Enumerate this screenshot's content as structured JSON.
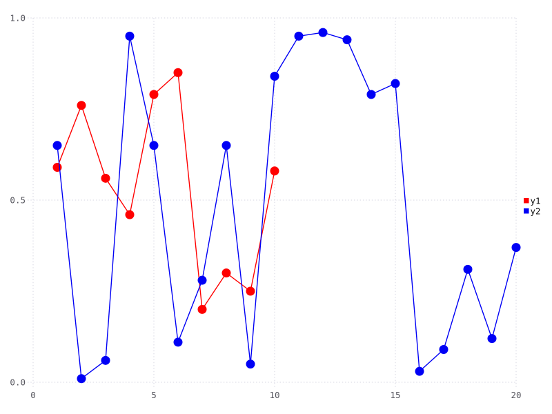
{
  "chart_data": {
    "type": "line",
    "title": "",
    "xlabel": "",
    "ylabel": "",
    "xlim": [
      0,
      20
    ],
    "ylim": [
      0,
      1
    ],
    "grid": true,
    "legend_position": "right-middle",
    "marker": "circle",
    "xticks": {
      "values": [
        0,
        5,
        10,
        15,
        20
      ],
      "labels": [
        "0",
        "5",
        "10",
        "15",
        "20"
      ]
    },
    "yticks": {
      "values": [
        0,
        0.5,
        1
      ],
      "labels": [
        "0.0",
        "0.5",
        "1.0"
      ]
    },
    "series": [
      {
        "name": "y1",
        "color": "#ff0000",
        "x": [
          1,
          2,
          3,
          4,
          5,
          6,
          7,
          8,
          9,
          10
        ],
        "values": [
          0.59,
          0.76,
          0.56,
          0.46,
          0.79,
          0.85,
          0.2,
          0.3,
          0.25,
          0.58
        ]
      },
      {
        "name": "y2",
        "color": "#0000f5",
        "x": [
          1,
          2,
          3,
          4,
          5,
          6,
          7,
          8,
          9,
          10,
          11,
          12,
          13,
          14,
          15,
          16,
          17,
          18,
          19,
          20
        ],
        "values": [
          0.65,
          0.01,
          0.06,
          0.95,
          0.65,
          0.11,
          0.28,
          0.65,
          0.05,
          0.84,
          0.95,
          0.96,
          0.94,
          0.79,
          0.82,
          0.03,
          0.09,
          0.31,
          0.12,
          0.37
        ]
      }
    ]
  },
  "styles": {
    "background": "#ffffff",
    "grid_color": "#d6d6e2",
    "tick_text_color": "#57575f",
    "legend_text_color": "#111111"
  }
}
